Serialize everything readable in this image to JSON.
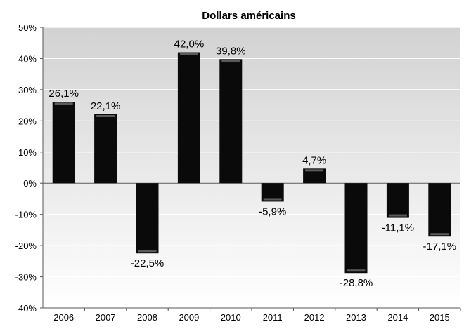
{
  "chart_data": {
    "type": "bar",
    "title": "Dollars américains",
    "xlabel": "",
    "ylabel": "",
    "categories": [
      "2006",
      "2007",
      "2008",
      "2009",
      "2010",
      "2011",
      "2012",
      "2013",
      "2014",
      "2015"
    ],
    "values": [
      26.1,
      22.1,
      -22.5,
      42.0,
      39.8,
      -5.9,
      4.7,
      -28.8,
      -11.1,
      -17.1
    ],
    "data_labels": [
      "26,1%",
      "22,1%",
      "-22,5%",
      "42,0%",
      "39,8%",
      "-5,9%",
      "4,7%",
      "-28,8%",
      "-11,1%",
      "-17,1%"
    ],
    "ylim": [
      -40,
      50
    ],
    "yticks": [
      50,
      40,
      30,
      20,
      10,
      0,
      -10,
      -20,
      -30,
      -40
    ],
    "ytick_labels": [
      "50%",
      "40%",
      "30%",
      "20%",
      "10%",
      "0%",
      "-10%",
      "-20%",
      "-30%",
      "-40%"
    ],
    "grid": true,
    "legend": "none",
    "colors": {
      "bar": "#0a0a0a",
      "bar_highlight": "#5a5a5a",
      "plot_bg_top": "#d2d2d2",
      "plot_bg_bottom": "#ffffff",
      "grid": "#ffffff",
      "text": "#000000"
    }
  }
}
